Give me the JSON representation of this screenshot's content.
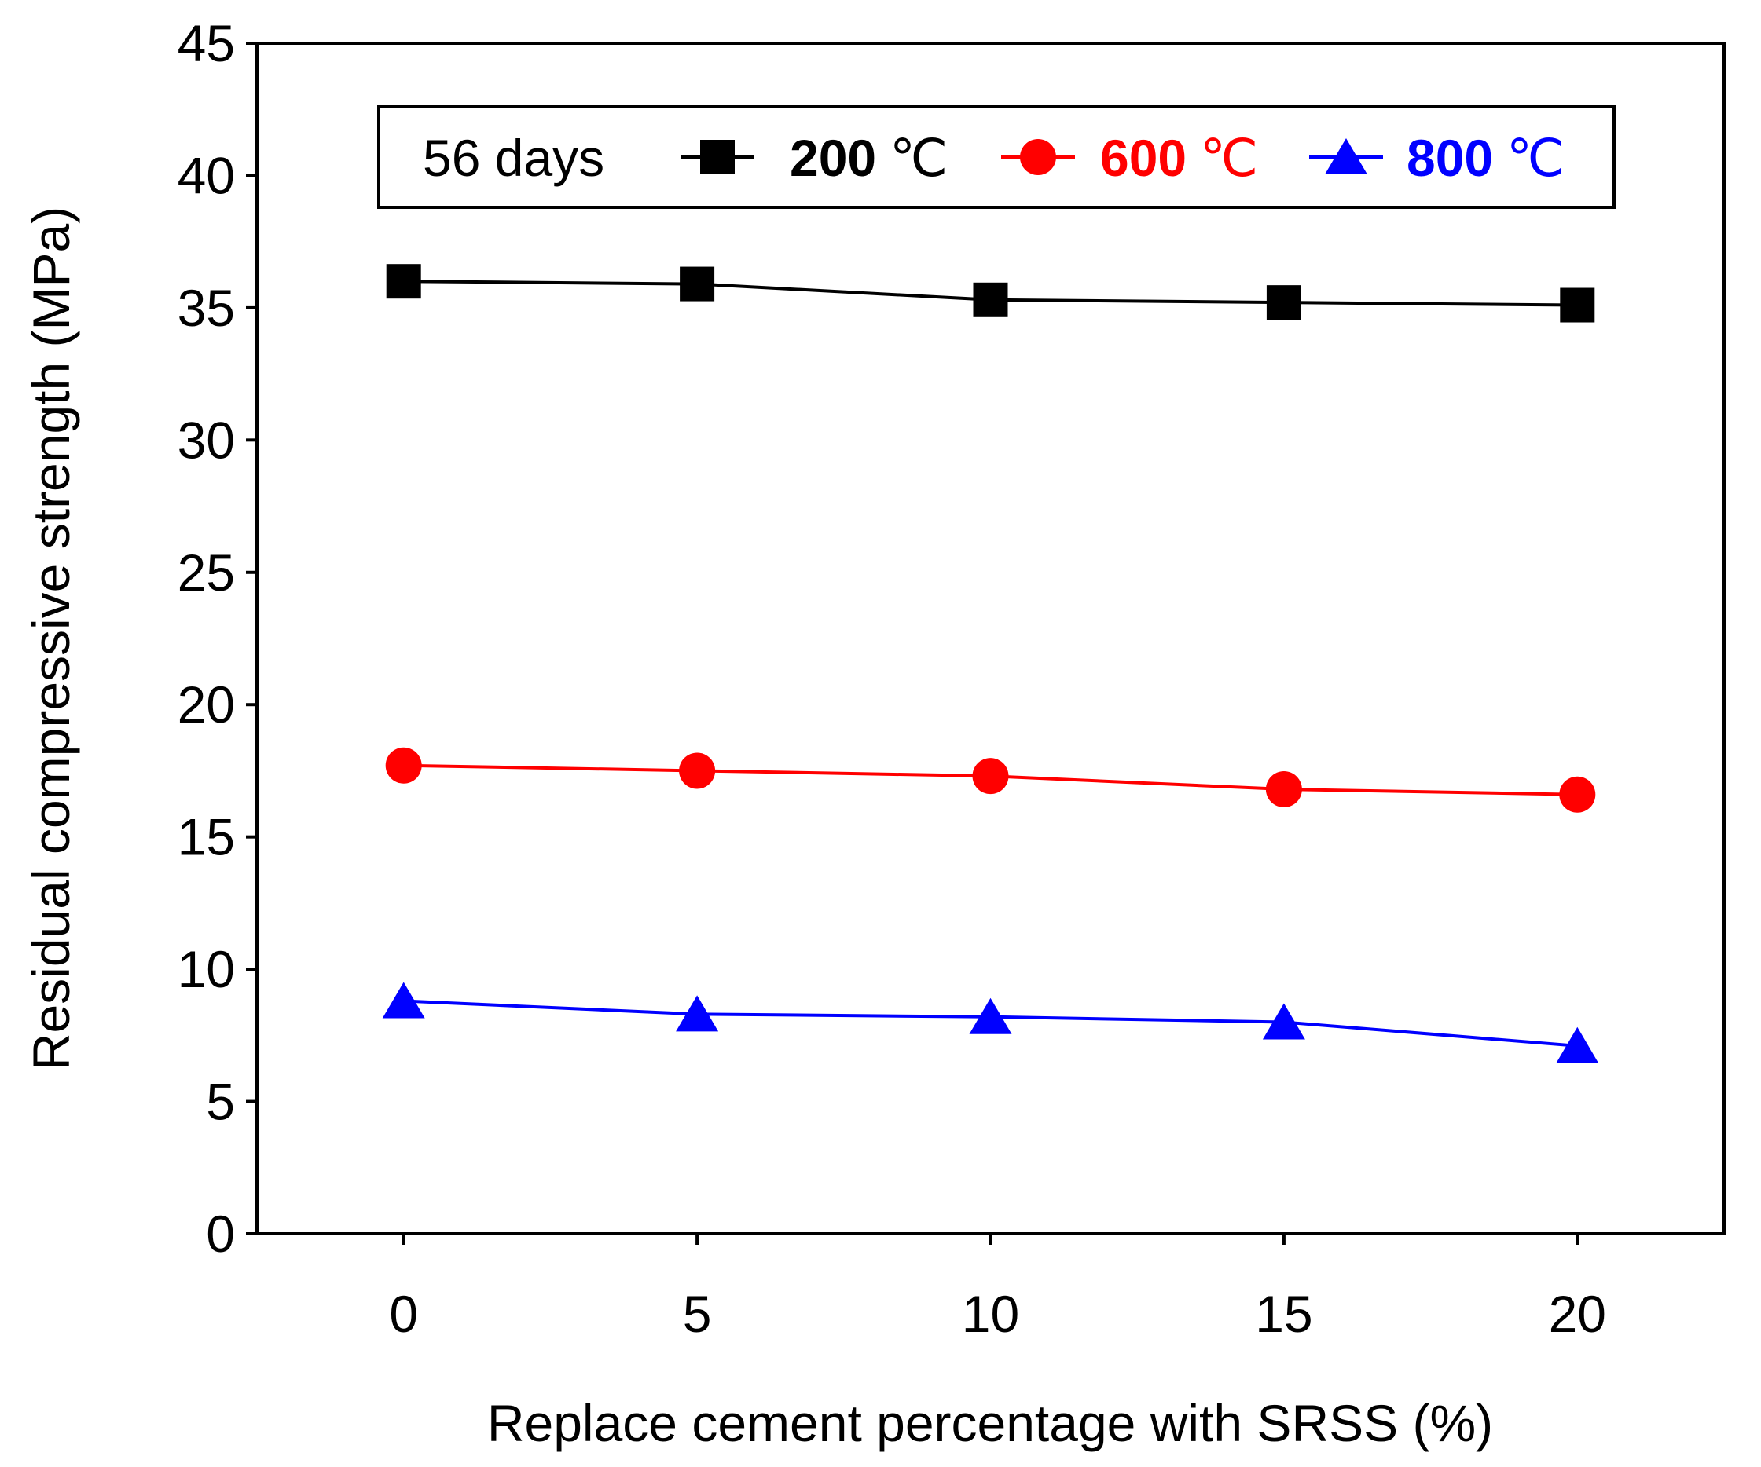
{
  "chart_data": {
    "type": "line",
    "title": "",
    "xlabel": "Replace cement percentage with SRSS (%)",
    "ylabel": "Residual compressive strength (MPa)",
    "x": [
      0,
      5,
      10,
      15,
      20
    ],
    "xlim": [
      -2.5,
      22.5
    ],
    "ylim": [
      0,
      45
    ],
    "xticks": [
      "0",
      "5",
      "10",
      "15",
      "20"
    ],
    "yticks": [
      "0",
      "5",
      "10",
      "15",
      "20",
      "25",
      "30",
      "35",
      "40",
      "45"
    ],
    "grid": false,
    "legend": {
      "title": "56 days",
      "placement": "top"
    },
    "series": [
      {
        "name": "200",
        "unit": "℃",
        "color": "#000000",
        "marker": "square",
        "values": [
          36.0,
          35.9,
          35.3,
          35.2,
          35.1
        ]
      },
      {
        "name": "600",
        "unit": "℃",
        "color": "#ff0000",
        "marker": "circle",
        "values": [
          17.7,
          17.5,
          17.3,
          16.8,
          16.6
        ]
      },
      {
        "name": "800",
        "unit": "℃",
        "color": "#0000ff",
        "marker": "triangle",
        "values": [
          8.8,
          8.3,
          8.2,
          8.0,
          7.1
        ]
      }
    ]
  }
}
